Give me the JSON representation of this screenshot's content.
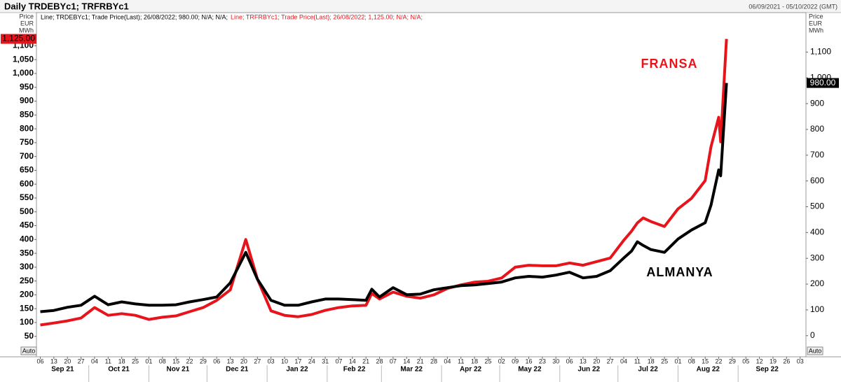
{
  "chart_data": {
    "type": "line",
    "title": "Daily TRDEBYc1; TRFRBYc1",
    "date_range": "06/09/2021 - 05/10/2022 (GMT)",
    "ylabel_lines": [
      "Price",
      "EUR",
      "MWh"
    ],
    "y2label_lines": [
      "Price",
      "EUR",
      "MWh"
    ],
    "auto_button": "Auto",
    "grid": false,
    "x": [
      "2021-09-06",
      "2021-09-13",
      "2021-09-20",
      "2021-09-27",
      "2021-10-04",
      "2021-10-11",
      "2021-10-18",
      "2021-10-25",
      "2021-11-01",
      "2021-11-08",
      "2021-11-15",
      "2021-11-22",
      "2021-11-29",
      "2021-12-06",
      "2021-12-13",
      "2021-12-21",
      "2021-12-27",
      "2022-01-03",
      "2022-01-10",
      "2022-01-17",
      "2022-01-24",
      "2022-01-31",
      "2022-02-07",
      "2022-02-14",
      "2022-02-21",
      "2022-02-24",
      "2022-02-28",
      "2022-03-07",
      "2022-03-14",
      "2022-03-21",
      "2022-03-28",
      "2022-04-04",
      "2022-04-11",
      "2022-04-18",
      "2022-04-25",
      "2022-05-02",
      "2022-05-09",
      "2022-05-16",
      "2022-05-23",
      "2022-05-30",
      "2022-06-06",
      "2022-06-13",
      "2022-06-20",
      "2022-06-27",
      "2022-07-04",
      "2022-07-08",
      "2022-07-11",
      "2022-07-14",
      "2022-07-18",
      "2022-07-25",
      "2022-08-01",
      "2022-08-08",
      "2022-08-15",
      "2022-08-18",
      "2022-08-22",
      "2022-08-23",
      "2022-08-26"
    ],
    "xlim": [
      "2021-09-04",
      "2022-10-06"
    ],
    "xticks": [
      {
        "value": "2021-09-06",
        "label": "06"
      },
      {
        "value": "2021-09-13",
        "label": "13"
      },
      {
        "value": "2021-09-20",
        "label": "20"
      },
      {
        "value": "2021-09-27",
        "label": "27"
      },
      {
        "value": "2021-10-04",
        "label": "04"
      },
      {
        "value": "2021-10-11",
        "label": "11"
      },
      {
        "value": "2021-10-18",
        "label": "18"
      },
      {
        "value": "2021-10-25",
        "label": "25"
      },
      {
        "value": "2021-11-01",
        "label": "01"
      },
      {
        "value": "2021-11-08",
        "label": "08"
      },
      {
        "value": "2021-11-15",
        "label": "15"
      },
      {
        "value": "2021-11-22",
        "label": "22"
      },
      {
        "value": "2021-11-29",
        "label": "29"
      },
      {
        "value": "2021-12-06",
        "label": "06"
      },
      {
        "value": "2021-12-13",
        "label": "13"
      },
      {
        "value": "2021-12-20",
        "label": "20"
      },
      {
        "value": "2021-12-27",
        "label": "27"
      },
      {
        "value": "2022-01-03",
        "label": "03"
      },
      {
        "value": "2022-01-10",
        "label": "10"
      },
      {
        "value": "2022-01-17",
        "label": "17"
      },
      {
        "value": "2022-01-24",
        "label": "24"
      },
      {
        "value": "2022-01-31",
        "label": "31"
      },
      {
        "value": "2022-02-07",
        "label": "07"
      },
      {
        "value": "2022-02-14",
        "label": "14"
      },
      {
        "value": "2022-02-21",
        "label": "21"
      },
      {
        "value": "2022-02-28",
        "label": "28"
      },
      {
        "value": "2022-03-07",
        "label": "07"
      },
      {
        "value": "2022-03-14",
        "label": "14"
      },
      {
        "value": "2022-03-21",
        "label": "21"
      },
      {
        "value": "2022-03-28",
        "label": "28"
      },
      {
        "value": "2022-04-04",
        "label": "04"
      },
      {
        "value": "2022-04-11",
        "label": "11"
      },
      {
        "value": "2022-04-18",
        "label": "18"
      },
      {
        "value": "2022-04-25",
        "label": "25"
      },
      {
        "value": "2022-05-02",
        "label": "02"
      },
      {
        "value": "2022-05-09",
        "label": "09"
      },
      {
        "value": "2022-05-16",
        "label": "16"
      },
      {
        "value": "2022-05-23",
        "label": "23"
      },
      {
        "value": "2022-05-30",
        "label": "30"
      },
      {
        "value": "2022-06-06",
        "label": "06"
      },
      {
        "value": "2022-06-13",
        "label": "13"
      },
      {
        "value": "2022-06-20",
        "label": "20"
      },
      {
        "value": "2022-06-27",
        "label": "27"
      },
      {
        "value": "2022-07-04",
        "label": "04"
      },
      {
        "value": "2022-07-11",
        "label": "11"
      },
      {
        "value": "2022-07-18",
        "label": "18"
      },
      {
        "value": "2022-07-25",
        "label": "25"
      },
      {
        "value": "2022-08-01",
        "label": "01"
      },
      {
        "value": "2022-08-08",
        "label": "08"
      },
      {
        "value": "2022-08-15",
        "label": "15"
      },
      {
        "value": "2022-08-22",
        "label": "22"
      },
      {
        "value": "2022-08-29",
        "label": "29"
      },
      {
        "value": "2022-09-05",
        "label": "05"
      },
      {
        "value": "2022-09-12",
        "label": "12"
      },
      {
        "value": "2022-09-19",
        "label": "19"
      },
      {
        "value": "2022-09-26",
        "label": "26"
      },
      {
        "value": "2022-10-03",
        "label": "03"
      }
    ],
    "month_labels": [
      {
        "value": "2021-09",
        "label": "Sep 21"
      },
      {
        "value": "2021-10",
        "label": "Oct 21"
      },
      {
        "value": "2021-11",
        "label": "Nov 21"
      },
      {
        "value": "2021-12",
        "label": "Dec 21"
      },
      {
        "value": "2022-01",
        "label": "Jan 22"
      },
      {
        "value": "2022-02",
        "label": "Feb 22"
      },
      {
        "value": "2022-03",
        "label": "Mar 22"
      },
      {
        "value": "2022-04",
        "label": "Apr 22"
      },
      {
        "value": "2022-05",
        "label": "May 22"
      },
      {
        "value": "2022-06",
        "label": "Jun 22"
      },
      {
        "value": "2022-07",
        "label": "Jul 22"
      },
      {
        "value": "2022-08",
        "label": "Aug 22"
      },
      {
        "value": "2022-09",
        "label": "Sep 22"
      }
    ],
    "ylim": [
      -24,
      1220
    ],
    "yticks": [
      50,
      100,
      150,
      200,
      250,
      300,
      350,
      400,
      450,
      500,
      550,
      600,
      650,
      700,
      750,
      800,
      850,
      900,
      950,
      {
        "value": 1000,
        "label": "1,000"
      },
      {
        "value": 1050,
        "label": "1,050"
      },
      {
        "value": 1100,
        "label": "1,100"
      }
    ],
    "y2lim": [
      -82,
      1253
    ],
    "y2ticks": [
      0,
      100,
      200,
      300,
      400,
      500,
      600,
      700,
      800,
      900,
      {
        "value": 1000,
        "label": "1,000"
      },
      {
        "value": 1100,
        "label": "1,100"
      }
    ],
    "series": [
      {
        "name": "Line; TRDEBYc1; Trade Price(Last); 26/08/2022; 980.00; N/A; N/A;",
        "color": "#000000",
        "axis": "y2",
        "last_value_label": "980.00",
        "values": [
          93,
          98,
          110,
          118,
          153,
          120,
          131,
          123,
          118,
          118,
          120,
          131,
          140,
          150,
          205,
          323,
          219,
          137,
          118,
          118,
          131,
          142,
          142,
          140,
          137,
          180,
          150,
          186,
          159,
          161,
          178,
          186,
          194,
          197,
          202,
          208,
          224,
          230,
          227,
          235,
          246,
          224,
          230,
          252,
          301,
          328,
          364,
          350,
          334,
          323,
          375,
          410,
          438,
          506,
          643,
          620,
          980
        ]
      },
      {
        "name": "Line; TRFRBYc1; Trade Price(Last); 26/08/2022; 1,125.00; N/A; N/A;",
        "color": "#e8141b",
        "axis": "y",
        "last_value_label": "1,125.00",
        "values": [
          91,
          98,
          106,
          116,
          154,
          126,
          132,
          126,
          111,
          119,
          124,
          139,
          154,
          180,
          218,
          400,
          257,
          142,
          126,
          121,
          129,
          144,
          154,
          160,
          162,
          205,
          185,
          210,
          195,
          188,
          200,
          223,
          236,
          246,
          249,
          261,
          300,
          307,
          305,
          305,
          315,
          307,
          320,
          333,
          397,
          430,
          460,
          478,
          465,
          447,
          511,
          549,
          613,
          735,
          842,
          753,
          1125
        ]
      }
    ],
    "annotations": [
      {
        "text": "FRANSA",
        "color": "#e8141b"
      },
      {
        "text": "ALMANYA",
        "color": "#000000"
      }
    ]
  }
}
